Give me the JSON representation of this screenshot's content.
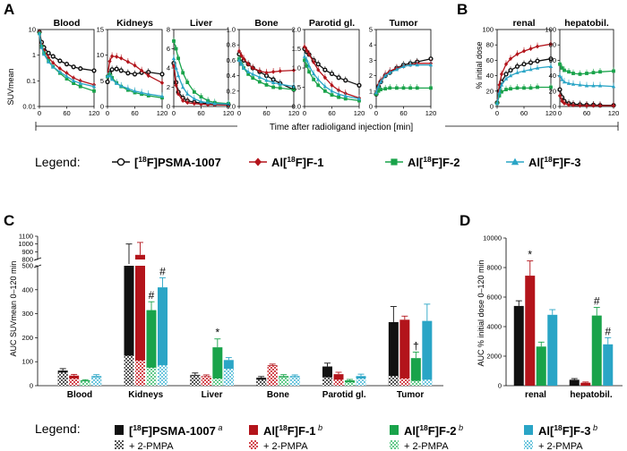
{
  "colors": {
    "PSMA-1007": "#111111",
    "F-1": "#b3141b",
    "F-2": "#19a34a",
    "F-3": "#2aa5c6"
  },
  "chart_data": [
    {
      "panel": "A",
      "type": "line",
      "y_scale": "log",
      "ylabel": "SUVmean",
      "ylim": [
        0.01,
        10
      ],
      "yticks": [
        "0.01",
        "0.1",
        "1",
        "10"
      ],
      "xlabel": "Time after radioligand injection [min]",
      "xticks": [
        "0",
        "60",
        "120"
      ],
      "series_names": [
        "[18F]PSMA-1007",
        "Al[18F]F-1",
        "Al[18F]F-2",
        "Al[18F]F-3"
      ],
      "subplots": [
        {
          "title": "Blood",
          "x": [
            0,
            5,
            10,
            20,
            30,
            45,
            60,
            75,
            90,
            120
          ],
          "series": [
            {
              "name": "[18F]PSMA-1007",
              "values": [
                8,
                3.2,
                2.0,
                1.2,
                0.9,
                0.6,
                0.45,
                0.35,
                0.3,
                0.25
              ]
            },
            {
              "name": "Al[18F]F-1",
              "values": [
                8,
                2.5,
                1.5,
                0.8,
                0.5,
                0.3,
                0.2,
                0.13,
                0.1,
                0.07
              ]
            },
            {
              "name": "Al[18F]F-2",
              "values": [
                7,
                2.2,
                1.2,
                0.6,
                0.35,
                0.2,
                0.12,
                0.08,
                0.06,
                0.04
              ]
            },
            {
              "name": "Al[18F]F-3",
              "values": [
                7,
                2.0,
                1.1,
                0.55,
                0.35,
                0.22,
                0.15,
                0.1,
                0.08,
                0.06
              ]
            }
          ]
        },
        {
          "title": "Kidneys",
          "ylim": [
            0,
            15
          ],
          "yticks": [
            "0",
            "5",
            "10",
            "15"
          ],
          "x": [
            0,
            5,
            10,
            20,
            30,
            45,
            60,
            75,
            90,
            120
          ],
          "series": [
            {
              "name": "[18F]PSMA-1007",
              "values": [
                4.8,
                6.5,
                7.2,
                7.3,
                7.0,
                6.5,
                6.3,
                6.6,
                6.7,
                6.3
              ]
            },
            {
              "name": "Al[18F]F-1",
              "values": [
                6,
                8.8,
                9.8,
                9.7,
                9.4,
                8.7,
                8.0,
                7.0,
                6.0,
                4.6
              ]
            },
            {
              "name": "Al[18F]F-2",
              "values": [
                5.8,
                6.2,
                5.6,
                4.6,
                3.9,
                3.2,
                2.7,
                2.4,
                2.1,
                1.7
              ]
            },
            {
              "name": "Al[18F]F-3",
              "values": [
                5.9,
                6.0,
                5.3,
                4.5,
                4.0,
                3.5,
                3.0,
                2.7,
                2.4,
                2.0
              ]
            }
          ]
        },
        {
          "title": "Liver",
          "ylim": [
            0,
            8
          ],
          "yticks": [
            "0",
            "2",
            "4",
            "6",
            "8"
          ],
          "x": [
            0,
            5,
            10,
            20,
            30,
            45,
            60,
            75,
            90,
            120
          ],
          "series": [
            {
              "name": "[18F]PSMA-1007",
              "values": [
                4.5,
                2.5,
                1.5,
                0.9,
                0.6,
                0.45,
                0.35,
                0.3,
                0.25,
                0.2
              ]
            },
            {
              "name": "Al[18F]F-1",
              "values": [
                4.2,
                2.2,
                1.3,
                0.6,
                0.4,
                0.3,
                0.25,
                0.2,
                0.18,
                0.15
              ]
            },
            {
              "name": "Al[18F]F-2",
              "values": [
                6.8,
                6.0,
                5.0,
                3.5,
                2.5,
                1.5,
                1.0,
                0.6,
                0.4,
                0.3
              ]
            },
            {
              "name": "Al[18F]F-3",
              "values": [
                5.0,
                4.0,
                3.2,
                2.0,
                1.3,
                0.8,
                0.5,
                0.4,
                0.3,
                0.25
              ]
            }
          ]
        },
        {
          "title": "Bone",
          "ylim": [
            0,
            1.0
          ],
          "yticks": [
            "0.0",
            "0.2",
            "0.4",
            "0.6",
            "0.8",
            "1.0"
          ],
          "x": [
            0,
            5,
            10,
            20,
            30,
            45,
            60,
            75,
            90,
            120
          ],
          "series": [
            {
              "name": "[18F]PSMA-1007",
              "values": [
                0.68,
                0.62,
                0.6,
                0.55,
                0.5,
                0.45,
                0.4,
                0.35,
                0.3,
                0.22
              ]
            },
            {
              "name": "Al[18F]F-1",
              "values": [
                0.72,
                0.66,
                0.62,
                0.55,
                0.5,
                0.46,
                0.44,
                0.45,
                0.46,
                0.47
              ]
            },
            {
              "name": "Al[18F]F-2",
              "values": [
                0.62,
                0.55,
                0.5,
                0.42,
                0.37,
                0.32,
                0.28,
                0.25,
                0.24,
                0.22
              ]
            },
            {
              "name": "Al[18F]F-3",
              "values": [
                0.6,
                0.55,
                0.5,
                0.45,
                0.42,
                0.38,
                0.34,
                0.31,
                0.29,
                0.26
              ]
            }
          ]
        },
        {
          "title": "Parotid gl.",
          "ylim": [
            0,
            2.0
          ],
          "yticks": [
            "0.0",
            "0.5",
            "1.0",
            "1.5",
            "2.0"
          ],
          "x": [
            0,
            5,
            10,
            20,
            30,
            45,
            60,
            75,
            90,
            120
          ],
          "series": [
            {
              "name": "[18F]PSMA-1007",
              "values": [
                1.5,
                1.42,
                1.35,
                1.2,
                1.1,
                0.95,
                0.85,
                0.75,
                0.68,
                0.55
              ]
            },
            {
              "name": "Al[18F]F-1",
              "values": [
                1.55,
                1.45,
                1.35,
                1.15,
                0.95,
                0.75,
                0.55,
                0.42,
                0.34,
                0.22
              ]
            },
            {
              "name": "Al[18F]F-2",
              "values": [
                1.2,
                1.05,
                0.9,
                0.7,
                0.55,
                0.4,
                0.3,
                0.24,
                0.2,
                0.15
              ]
            },
            {
              "name": "Al[18F]F-3",
              "values": [
                1.3,
                1.2,
                1.05,
                0.85,
                0.7,
                0.52,
                0.4,
                0.32,
                0.27,
                0.2
              ]
            }
          ]
        },
        {
          "title": "Tumor",
          "ylim": [
            0,
            5
          ],
          "yticks": [
            "0",
            "1",
            "2",
            "3",
            "4",
            "5"
          ],
          "x": [
            0,
            5,
            10,
            20,
            30,
            45,
            60,
            75,
            90,
            120
          ],
          "series": [
            {
              "name": "[18F]PSMA-1007",
              "values": [
                0.8,
                1.3,
                1.6,
                2.0,
                2.2,
                2.5,
                2.7,
                2.8,
                2.9,
                3.1
              ]
            },
            {
              "name": "Al[18F]F-1",
              "values": [
                0.9,
                1.4,
                1.7,
                2.1,
                2.3,
                2.5,
                2.6,
                2.7,
                2.8,
                2.8
              ]
            },
            {
              "name": "Al[18F]F-2",
              "values": [
                0.8,
                1.0,
                1.1,
                1.15,
                1.2,
                1.2,
                1.2,
                1.2,
                1.2,
                1.2
              ]
            },
            {
              "name": "Al[18F]F-3",
              "values": [
                0.9,
                1.3,
                1.6,
                2.0,
                2.2,
                2.4,
                2.6,
                2.7,
                2.7,
                2.7
              ]
            }
          ]
        }
      ]
    },
    {
      "panel": "B",
      "type": "line",
      "ylabel": "% initial dose",
      "ylim": [
        0,
        100
      ],
      "yticks": [
        "0",
        "20",
        "40",
        "60",
        "80",
        "100"
      ],
      "xticks": [
        "0",
        "60",
        "120"
      ],
      "subplots": [
        {
          "title": "renal",
          "x": [
            0,
            5,
            10,
            20,
            30,
            45,
            60,
            75,
            90,
            120
          ],
          "series": [
            {
              "name": "[18F]PSMA-1007",
              "values": [
                5,
                20,
                32,
                42,
                47,
                52,
                55,
                57,
                59,
                62
              ]
            },
            {
              "name": "Al[18F]F-1",
              "values": [
                5,
                28,
                42,
                55,
                62,
                68,
                72,
                75,
                78,
                81
              ]
            },
            {
              "name": "Al[18F]F-2",
              "values": [
                4,
                14,
                19,
                22,
                23,
                24,
                24,
                24,
                25,
                25
              ]
            },
            {
              "name": "Al[18F]F-3",
              "values": [
                4,
                18,
                28,
                36,
                40,
                44,
                46,
                48,
                50,
                52
              ]
            }
          ]
        },
        {
          "title": "hepatobil.",
          "x": [
            0,
            5,
            10,
            20,
            30,
            45,
            60,
            75,
            90,
            120
          ],
          "series": [
            {
              "name": "[18F]PSMA-1007",
              "values": [
                22,
                12,
                7,
                4,
                3,
                2.5,
                2,
                2,
                1.5,
                1.5
              ]
            },
            {
              "name": "Al[18F]F-1",
              "values": [
                14,
                7,
                4,
                2,
                1.5,
                1,
                1,
                1,
                1,
                1
              ]
            },
            {
              "name": "Al[18F]F-2",
              "values": [
                55,
                50,
                47,
                45,
                43,
                42,
                43,
                44,
                45,
                46
              ]
            },
            {
              "name": "Al[18F]F-3",
              "values": [
                40,
                35,
                32,
                30,
                29,
                28,
                27,
                27,
                27,
                26
              ]
            }
          ]
        }
      ]
    },
    {
      "panel": "C",
      "type": "bar",
      "ylabel": "AUC SUVmean 0–120 min",
      "broken_axis": true,
      "yticks_lower": [
        "0",
        "100",
        "200",
        "300",
        "400",
        "500"
      ],
      "yticks_upper": [
        "800",
        "900",
        "1000",
        "1100"
      ],
      "categories": [
        "Blood",
        "Kidneys",
        "Liver",
        "Bone",
        "Parotid gl.",
        "Tumor"
      ],
      "series": [
        {
          "name": "[18F]PSMA-1007",
          "values": [
            63,
            770,
            45,
            33,
            80,
            265
          ],
          "errors": [
            8,
            230,
            8,
            5,
            14,
            65
          ],
          "blocked": [
            55,
            125,
            42,
            25,
            35,
            40
          ]
        },
        {
          "name": "Al[18F]F-1",
          "values": [
            42,
            860,
            40,
            85,
            48,
            275
          ],
          "errors": [
            5,
            160,
            5,
            5,
            8,
            15
          ],
          "blocked": [
            30,
            105,
            38,
            82,
            25,
            30
          ]
        },
        {
          "name": "Al[18F]F-2",
          "values": [
            22,
            315,
            160,
            40,
            22,
            115
          ],
          "errors": [
            3,
            35,
            35,
            6,
            4,
            25
          ],
          "blocked": [
            18,
            75,
            30,
            35,
            14,
            20
          ]
        },
        {
          "name": "Al[18F]F-3",
          "values": [
            40,
            410,
            107,
            40,
            40,
            270
          ],
          "errors": [
            6,
            40,
            10,
            5,
            8,
            70
          ],
          "blocked": [
            35,
            85,
            70,
            36,
            30,
            25
          ]
        }
      ],
      "annotations": [
        {
          "category": "Kidneys",
          "series": "Al[18F]F-2",
          "text": "#"
        },
        {
          "category": "Kidneys",
          "series": "Al[18F]F-3",
          "text": "#"
        },
        {
          "category": "Liver",
          "series": "Al[18F]F-2",
          "text": "*"
        },
        {
          "category": "Tumor",
          "series": "Al[18F]F-2",
          "text": "†"
        }
      ]
    },
    {
      "panel": "D",
      "type": "bar",
      "ylabel": "AUC % initial dose 0–120 min",
      "ylim": [
        0,
        10000
      ],
      "yticks": [
        "0",
        "2000",
        "4000",
        "6000",
        "8000",
        "10000"
      ],
      "categories": [
        "renal",
        "hepatobil."
      ],
      "series": [
        {
          "name": "[18F]PSMA-1007",
          "values": [
            5400,
            400
          ],
          "errors": [
            350,
            80
          ]
        },
        {
          "name": "Al[18F]F-1",
          "values": [
            7450,
            200
          ],
          "errors": [
            1000,
            50
          ]
        },
        {
          "name": "Al[18F]F-2",
          "values": [
            2650,
            4750
          ],
          "errors": [
            300,
            550
          ]
        },
        {
          "name": "Al[18F]F-3",
          "values": [
            4800,
            2800
          ],
          "errors": [
            350,
            450
          ]
        }
      ],
      "annotations": [
        {
          "category": "renal",
          "series": "Al[18F]F-1",
          "text": "*"
        },
        {
          "category": "hepatobil.",
          "series": "Al[18F]F-2",
          "text": "#"
        },
        {
          "category": "hepatobil.",
          "series": "Al[18F]F-3",
          "text": "#"
        }
      ]
    }
  ],
  "panel_labels": {
    "a": "A",
    "b": "B",
    "c": "C",
    "d": "D"
  },
  "legend_top": {
    "label": "Legend:",
    "entries": [
      {
        "pre": "[",
        "sup": "18",
        "post": "F]PSMA-1007",
        "marker": "circle-open"
      },
      {
        "pre": "Al[",
        "sup": "18",
        "post": "F]F-1",
        "marker": "diamond"
      },
      {
        "pre": "Al[",
        "sup": "18",
        "post": "F]F-2",
        "marker": "square"
      },
      {
        "pre": "Al[",
        "sup": "18",
        "post": "F]F-3",
        "marker": "triangle"
      }
    ]
  },
  "legend_bottom": {
    "label": "Legend:",
    "entries": [
      {
        "pre": "[",
        "sup": "18",
        "post": "F]PSMA-1007",
        "note": "a"
      },
      {
        "pre": "Al[",
        "sup": "18",
        "post": "F]F-1",
        "note": "b"
      },
      {
        "pre": "Al[",
        "sup": "18",
        "post": "F]F-2",
        "note": "b"
      },
      {
        "pre": "Al[",
        "sup": "18",
        "post": "F]F-3",
        "note": "b"
      }
    ],
    "blocking_label": "+ 2-PMPA"
  }
}
